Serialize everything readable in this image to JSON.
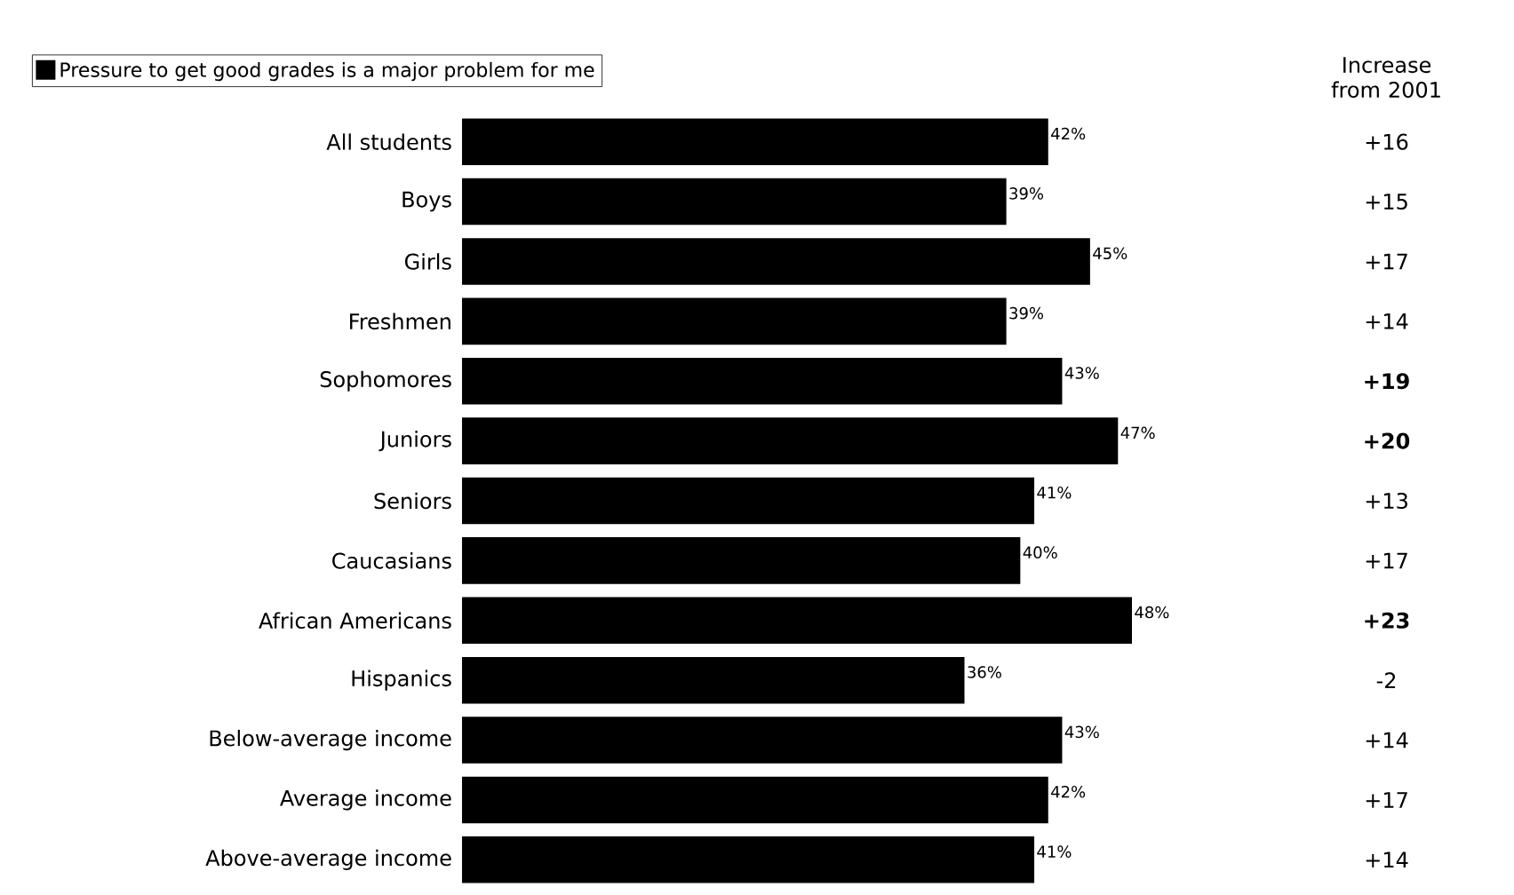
{
  "chart_data": {
    "type": "bar",
    "orientation": "horizontal",
    "categories": [
      "All students",
      "Boys",
      "Girls",
      "Freshmen",
      "Sophomores",
      "Juniors",
      "Seniors",
      "Caucasians",
      "African Americans",
      "Hispanics",
      "Below-average income",
      "Average income",
      "Above-average income"
    ],
    "series": [
      {
        "name": "Pressure to get good grades is a major problem for me",
        "color": "#000000",
        "values": [
          42,
          39,
          45,
          39,
          43,
          47,
          41,
          40,
          48,
          36,
          43,
          42,
          41
        ],
        "value_labels": [
          "42%",
          "39%",
          "45%",
          "39%",
          "43%",
          "47%",
          "41%",
          "40%",
          "48%",
          "36%",
          "43%",
          "42%",
          "41%"
        ]
      }
    ],
    "legend": "top left",
    "annotations": [
      "Increase from 2001",
      "+16",
      "+15",
      "+17",
      "+14",
      "**+19**",
      "**+20**",
      "+13",
      "+17",
      "**+23**",
      "-2",
      "+14",
      "+17",
      "+14"
    ]
  }
}
